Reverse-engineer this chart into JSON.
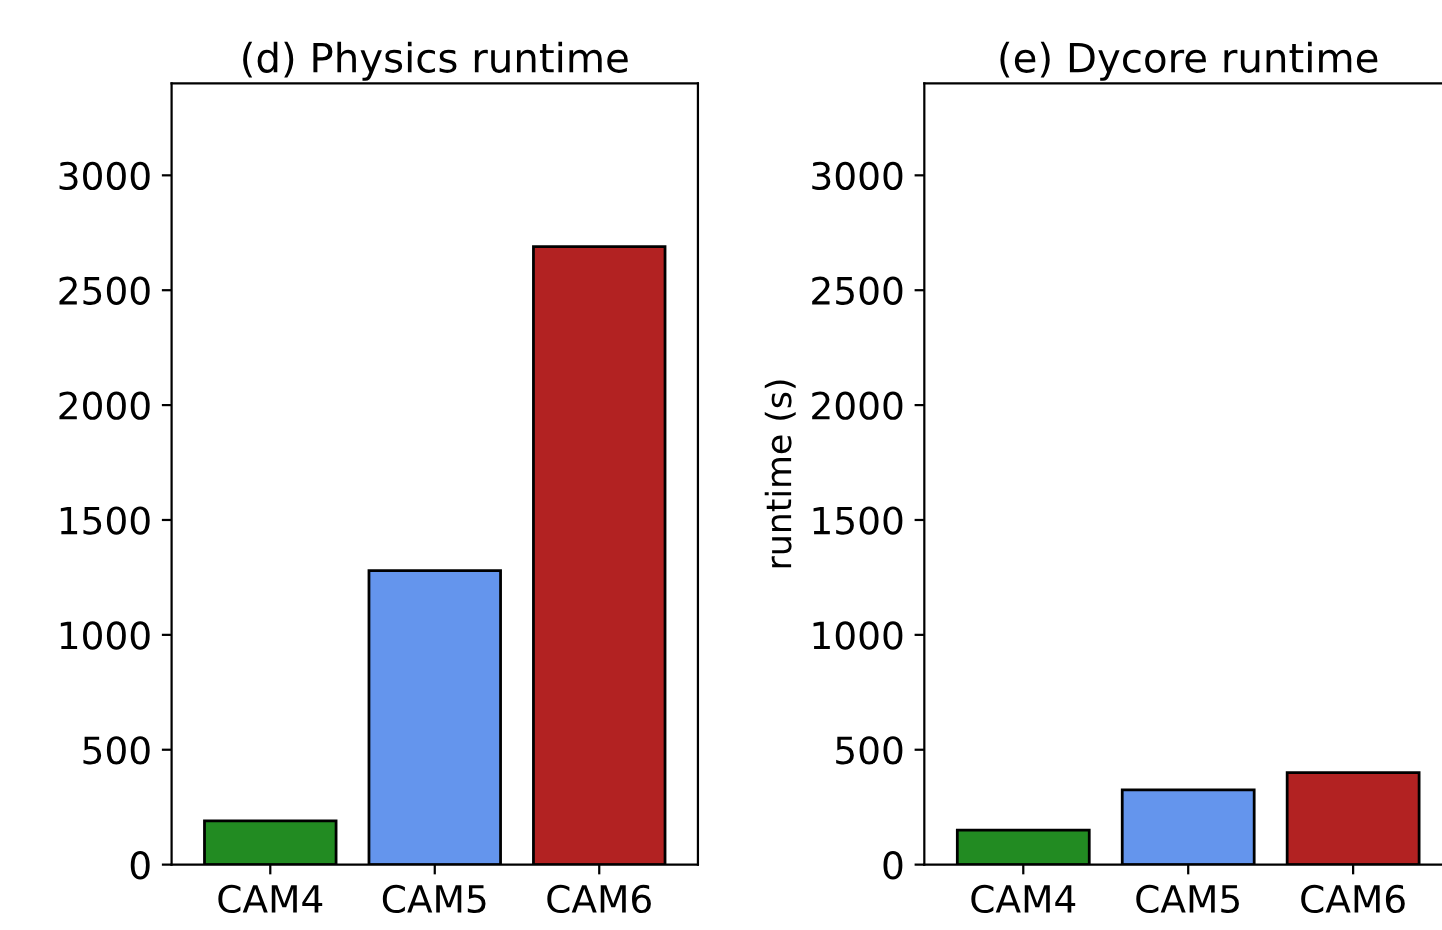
{
  "chart_data": [
    {
      "type": "bar",
      "title": "(d) Physics runtime",
      "categories": [
        "CAM4",
        "CAM5",
        "CAM6"
      ],
      "values": [
        190,
        1280,
        2690
      ],
      "colors": [
        "#228b22",
        "#6495ed",
        "#b22222"
      ],
      "ylim": [
        0,
        3400
      ],
      "yticks": [
        0,
        500,
        1000,
        1500,
        2000,
        2500,
        3000
      ]
    },
    {
      "type": "bar",
      "title": "(e) Dycore runtime",
      "ylabel": "runtime (s)",
      "categories": [
        "CAM4",
        "CAM5",
        "CAM6"
      ],
      "values": [
        150,
        325,
        400
      ],
      "colors": [
        "#228b22",
        "#6495ed",
        "#b22222"
      ],
      "ylim": [
        0,
        3400
      ],
      "yticks": [
        0,
        500,
        1000,
        1500,
        2000,
        2500,
        3000
      ]
    }
  ]
}
